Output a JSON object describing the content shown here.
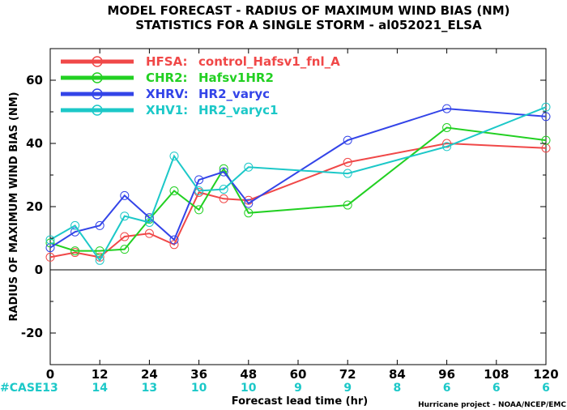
{
  "chart_data": {
    "type": "line",
    "title": "MODEL FORECAST - RADIUS OF MAXIMUM WIND BIAS (NM)",
    "subtitle": "STATISTICS FOR A SINGLE STORM - al052021_ELSA",
    "xlabel": "Forecast lead time (hr)",
    "ylabel": "RADIUS OF MAXIMUM WIND BIAS (NM)",
    "xlim": [
      0,
      120
    ],
    "ylim": [
      -30,
      70
    ],
    "x_ticks": [
      "0",
      "12",
      "24",
      "36",
      "48",
      "60",
      "72",
      "84",
      "96",
      "108",
      "120"
    ],
    "y_ticks": [
      "-20",
      "0",
      "20",
      "40",
      "60"
    ],
    "legend_position": "top-left",
    "case_label": "#CASE",
    "case_counts": [
      {
        "x": 0,
        "label": "13"
      },
      {
        "x": 12,
        "label": "14"
      },
      {
        "x": 24,
        "label": "13"
      },
      {
        "x": 36,
        "label": "10"
      },
      {
        "x": 48,
        "label": "10"
      },
      {
        "x": 60,
        "label": "9"
      },
      {
        "x": 72,
        "label": "9"
      },
      {
        "x": 84,
        "label": "8"
      },
      {
        "x": 96,
        "label": "6"
      },
      {
        "x": 108,
        "label": "6"
      },
      {
        "x": 120,
        "label": "6"
      }
    ],
    "credit": "Hurricane project - NOAA/NCEP/EMC",
    "series": [
      {
        "legend_key": "HFSA:",
        "legend_value": "control_Hafsv1_fnl_A",
        "color": "#f04848",
        "x": [
          0,
          6,
          12,
          18,
          24,
          30,
          36,
          42,
          48,
          72,
          96,
          120
        ],
        "y": [
          4,
          5.5,
          4,
          10.5,
          11.5,
          8,
          24.5,
          22.5,
          22,
          34,
          40,
          38.5
        ]
      },
      {
        "legend_key": "CHR2:",
        "legend_value": "Hafsv1HR2",
        "color": "#22d022",
        "x": [
          0,
          6,
          12,
          18,
          24,
          30,
          36,
          42,
          48,
          72,
          96,
          120
        ],
        "y": [
          8.5,
          6,
          6,
          6.5,
          16,
          25,
          19,
          32,
          18,
          20.5,
          45,
          41
        ]
      },
      {
        "legend_key": "XHRV:",
        "legend_value": "HR2_varyc",
        "color": "#3344e8",
        "x": [
          0,
          6,
          12,
          18,
          24,
          30,
          36,
          42,
          48,
          72,
          96,
          120
        ],
        "y": [
          7,
          12,
          14,
          23.5,
          16.5,
          9.5,
          28.5,
          31,
          21,
          41,
          51,
          48.5
        ]
      },
      {
        "legend_key": "XHV1:",
        "legend_value": "HR2_varyc1",
        "color": "#1cc8c8",
        "x": [
          0,
          6,
          12,
          18,
          24,
          30,
          36,
          42,
          48,
          72,
          96,
          120
        ],
        "y": [
          9.5,
          14,
          3,
          17,
          15,
          36,
          25,
          25.5,
          32.5,
          30.5,
          39,
          51.5
        ]
      }
    ]
  }
}
